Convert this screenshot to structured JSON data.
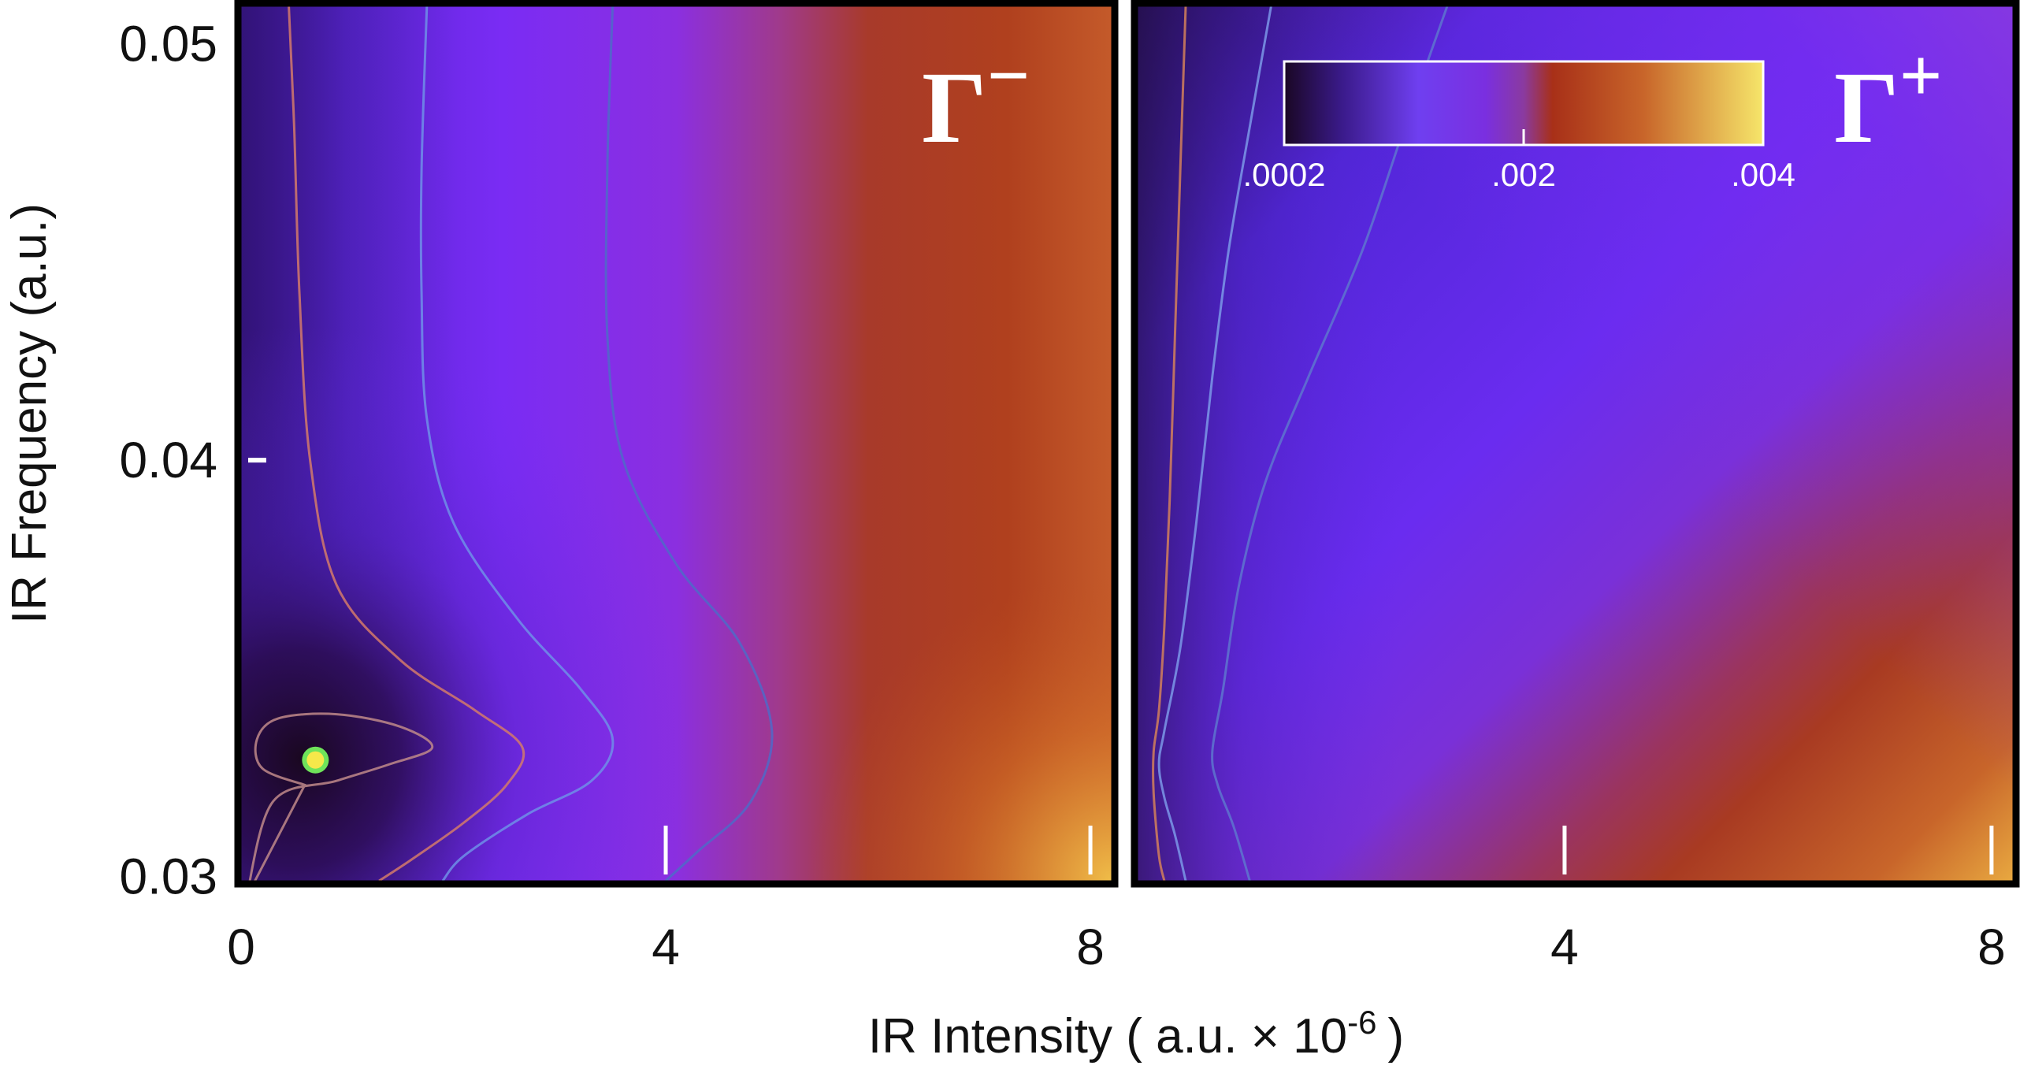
{
  "chart_data": [
    {
      "type": "heatmap",
      "panel_label": "Γ",
      "panel_label_sup": "−",
      "xlabel": "IR Intensity ( a.u. × 10",
      "xlabel_exp": "-6",
      "xlabel_close": ")",
      "ylabel": "IR Frequency (a.u.)",
      "xlim": [
        0,
        8.2
      ],
      "ylim": [
        0.0299,
        0.0509
      ],
      "x_ticks": [
        {
          "value": 0,
          "label": "0"
        },
        {
          "value": 4,
          "label": "4"
        },
        {
          "value": 8,
          "label": "8"
        }
      ],
      "y_ticks": [
        {
          "value": 0.03,
          "label": "0.03"
        },
        {
          "value": 0.04,
          "label": "0.04"
        },
        {
          "value": 0.05,
          "label": "0.05"
        }
      ],
      "marker": {
        "x": 0.7,
        "y": 0.0328,
        "color": "#f5e84a",
        "ring_color": "#6fe35a"
      },
      "markers_white": [
        {
          "x": 4,
          "y": 0.03
        },
        {
          "x": 8,
          "y": 0.03
        },
        {
          "x": 0,
          "y": 0.04
        }
      ],
      "contours": [
        {
          "label": "inner",
          "color": "#c08a8a",
          "points": [
            [
              0.05,
              0.0295
            ],
            [
              0.3,
              0.0318
            ],
            [
              0.9,
              0.0323
            ],
            [
              1.4,
              0.0327
            ],
            [
              1.8,
              0.0331
            ],
            [
              1.5,
              0.0336
            ],
            [
              0.9,
              0.0339
            ],
            [
              0.35,
              0.0338
            ],
            [
              0.15,
              0.0333
            ],
            [
              0.2,
              0.0326
            ],
            [
              0.6,
              0.0322
            ]
          ]
        },
        {
          "label": "salmon",
          "color": "#d47a6a",
          "points": [
            [
              0.45,
              0.0509
            ],
            [
              0.5,
              0.048
            ],
            [
              0.55,
              0.044
            ],
            [
              0.65,
              0.04
            ],
            [
              0.9,
              0.037
            ],
            [
              1.5,
              0.0352
            ],
            [
              2.2,
              0.034
            ],
            [
              2.65,
              0.0331
            ],
            [
              2.5,
              0.0322
            ],
            [
              2.1,
              0.0313
            ],
            [
              1.6,
              0.0304
            ],
            [
              1.3,
              0.0299
            ]
          ]
        },
        {
          "label": "blue",
          "color": "#6f8fe8",
          "points": [
            [
              1.75,
              0.0509
            ],
            [
              1.7,
              0.047
            ],
            [
              1.7,
              0.044
            ],
            [
              1.75,
              0.041
            ],
            [
              2.0,
              0.0385
            ],
            [
              2.6,
              0.0362
            ],
            [
              3.2,
              0.0345
            ],
            [
              3.5,
              0.0333
            ],
            [
              3.3,
              0.0323
            ],
            [
              2.7,
              0.0315
            ],
            [
              2.1,
              0.0305
            ],
            [
              1.9,
              0.0299
            ]
          ]
        },
        {
          "label": "dark-blue",
          "color": "#4f6ac8",
          "points": [
            [
              3.5,
              0.0509
            ],
            [
              3.45,
              0.047
            ],
            [
              3.45,
              0.043
            ],
            [
              3.6,
              0.04
            ],
            [
              4.1,
              0.0375
            ],
            [
              4.7,
              0.0356
            ],
            [
              5.0,
              0.0335
            ],
            [
              4.8,
              0.0318
            ],
            [
              4.3,
              0.0306
            ],
            [
              4.0,
              0.0299
            ]
          ]
        }
      ]
    },
    {
      "type": "heatmap",
      "panel_label": "Γ",
      "panel_label_sup": "+",
      "xlim": [
        0,
        8.2
      ],
      "ylim": [
        0.0299,
        0.0509
      ],
      "x_ticks": [
        {
          "value": 4,
          "label": "4"
        },
        {
          "value": 8,
          "label": "8"
        }
      ],
      "markers_white": [
        {
          "x": 4,
          "y": 0.03
        },
        {
          "x": 8,
          "y": 0.03
        }
      ],
      "contours": [
        {
          "label": "orange",
          "color": "#d4805a",
          "points": [
            [
              0.45,
              0.0509
            ],
            [
              0.4,
              0.047
            ],
            [
              0.35,
              0.043
            ],
            [
              0.3,
              0.039
            ],
            [
              0.25,
              0.036
            ],
            [
              0.2,
              0.034
            ],
            [
              0.15,
              0.033
            ],
            [
              0.15,
              0.032
            ],
            [
              0.2,
              0.0305
            ],
            [
              0.25,
              0.0299
            ]
          ]
        },
        {
          "label": "light-blue",
          "color": "#7b98e8",
          "points": [
            [
              1.25,
              0.0509
            ],
            [
              1.05,
              0.048
            ],
            [
              0.85,
              0.045
            ],
            [
              0.7,
              0.042
            ],
            [
              0.55,
              0.0385
            ],
            [
              0.4,
              0.0355
            ],
            [
              0.25,
              0.0335
            ],
            [
              0.2,
              0.0327
            ],
            [
              0.25,
              0.0319
            ],
            [
              0.35,
              0.031
            ],
            [
              0.45,
              0.0299
            ]
          ]
        },
        {
          "label": "mid-blue",
          "color": "#5e76cf",
          "points": [
            [
              2.9,
              0.0509
            ],
            [
              2.5,
              0.048
            ],
            [
              2.1,
              0.045
            ],
            [
              1.6,
              0.042
            ],
            [
              1.2,
              0.0395
            ],
            [
              0.95,
              0.037
            ],
            [
              0.8,
              0.0345
            ],
            [
              0.7,
              0.033
            ],
            [
              0.75,
              0.0322
            ],
            [
              0.9,
              0.0312
            ],
            [
              1.05,
              0.0299
            ]
          ]
        }
      ]
    }
  ],
  "colorbar": {
    "stops": [
      {
        "offset": 0.0,
        "color": "#1a0724"
      },
      {
        "offset": 0.12,
        "color": "#3a1a8a"
      },
      {
        "offset": 0.28,
        "color": "#6f3ff0"
      },
      {
        "offset": 0.42,
        "color": "#7a2fe0"
      },
      {
        "offset": 0.5,
        "color": "#8a3aa0"
      },
      {
        "offset": 0.56,
        "color": "#a83018"
      },
      {
        "offset": 0.75,
        "color": "#c8652a"
      },
      {
        "offset": 1.0,
        "color": "#f6e66a"
      }
    ],
    "ticks": [
      {
        "pos": 0.0,
        "label": ".0002"
      },
      {
        "pos": 0.5,
        "label": ".002"
      },
      {
        "pos": 1.0,
        "label": ".004"
      }
    ]
  },
  "colors": {
    "deep": "#1c0a2c",
    "violet": "#7a2df2",
    "purple_blue": "#5b27d8",
    "rust": "#a83a1c",
    "gold": "#f0c050"
  }
}
